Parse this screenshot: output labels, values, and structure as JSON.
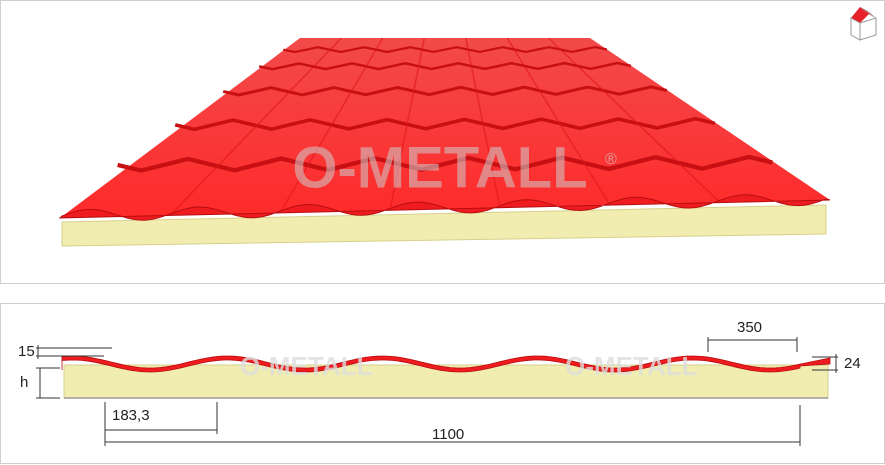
{
  "watermark": "O-METALL",
  "registered": "®",
  "dimensions": {
    "skin": "15",
    "height": "h",
    "step": "183,3",
    "width": "1100",
    "wave": "350",
    "edge": "24"
  }
}
